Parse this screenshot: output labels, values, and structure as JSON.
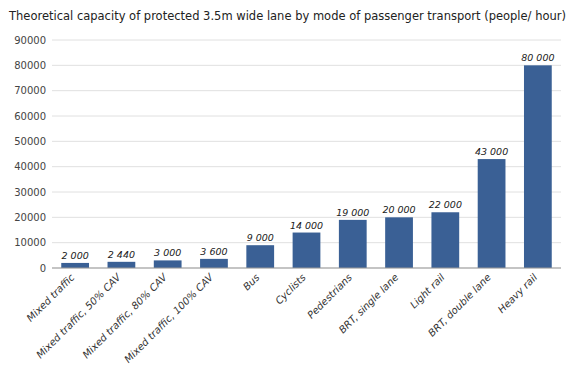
{
  "chart_data": {
    "type": "bar",
    "title": "Theoretical capacity of protected 3.5m wide lane by mode of passenger transport (people/ hour)",
    "categories": [
      "Mixed traffic",
      "Mixed traffic, 50% CAV",
      "Mixed traffic, 80% CAV",
      "Mixed traffic, 100% CAV",
      "Bus",
      "Cyclists",
      "Pedestrians",
      "BRT, single lane",
      "Light rail",
      "BRT, double lane",
      "Heavy rail"
    ],
    "values": [
      2000,
      2440,
      3000,
      3600,
      9000,
      14000,
      19000,
      20000,
      22000,
      43000,
      80000
    ],
    "value_labels": [
      "2 000",
      "2 440",
      "3 000",
      "3 600",
      "9 000",
      "14 000",
      "19 000",
      "20 000",
      "22 000",
      "43 000",
      "80 000"
    ],
    "color": "#3A6095",
    "ylim": [
      0,
      90000
    ],
    "yticks": [
      0,
      10000,
      20000,
      30000,
      40000,
      50000,
      60000,
      70000,
      80000,
      90000
    ],
    "grid": true,
    "data_labels": true
  }
}
